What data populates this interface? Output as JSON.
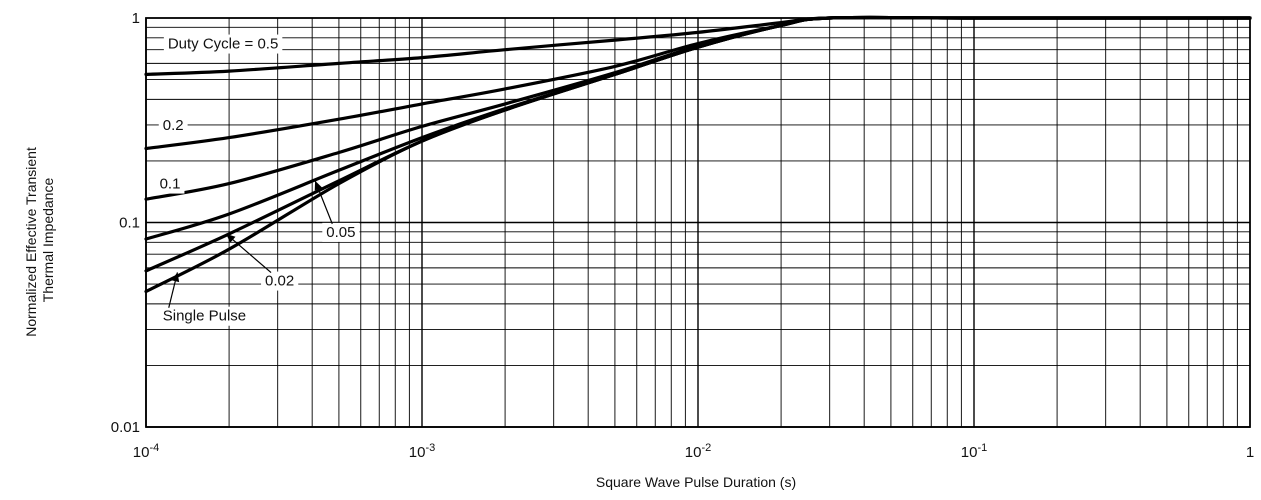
{
  "chart_data": {
    "type": "line",
    "title": "",
    "xlabel": "Square Wave Pulse Duration (s)",
    "ylabel_lines": [
      "Normalized Effective Transient",
      "Thermal Impedance"
    ],
    "x_scale": "log",
    "y_scale": "log",
    "xlim": [
      0.0001,
      1
    ],
    "ylim": [
      0.01,
      1
    ],
    "grid": true,
    "x_ticks": [
      {
        "value": 0.0001,
        "base": "10",
        "exp": "-4"
      },
      {
        "value": 0.001,
        "base": "10",
        "exp": "-3"
      },
      {
        "value": 0.01,
        "base": "10",
        "exp": "-2"
      },
      {
        "value": 0.1,
        "base": "10",
        "exp": "-1"
      },
      {
        "value": 1,
        "base": "1",
        "exp": ""
      }
    ],
    "y_ticks": [
      {
        "value": 0.01,
        "label": "0.01"
      },
      {
        "value": 0.1,
        "label": "0.1"
      },
      {
        "value": 1,
        "label": "1"
      }
    ],
    "series": [
      {
        "name": "Duty Cycle = 0.5",
        "x": [
          0.0001,
          0.0002,
          0.0005,
          0.001,
          0.002,
          0.005,
          0.01,
          0.02,
          0.03,
          0.1,
          1
        ],
        "y": [
          0.53,
          0.55,
          0.6,
          0.64,
          0.7,
          0.78,
          0.85,
          0.95,
          1.0,
          1.0,
          1.0
        ]
      },
      {
        "name": "0.2",
        "x": [
          0.0001,
          0.0002,
          0.0005,
          0.001,
          0.002,
          0.005,
          0.01,
          0.02,
          0.03,
          0.1,
          1
        ],
        "y": [
          0.23,
          0.26,
          0.32,
          0.38,
          0.45,
          0.58,
          0.75,
          0.92,
          1.0,
          1.0,
          1.0
        ]
      },
      {
        "name": "0.1",
        "x": [
          0.0001,
          0.0002,
          0.0005,
          0.001,
          0.002,
          0.005,
          0.01,
          0.02,
          0.03,
          0.1,
          1
        ],
        "y": [
          0.13,
          0.155,
          0.22,
          0.295,
          0.38,
          0.54,
          0.73,
          0.92,
          1.0,
          1.0,
          1.0
        ]
      },
      {
        "name": "0.05",
        "x": [
          0.0001,
          0.0002,
          0.0005,
          0.001,
          0.002,
          0.005,
          0.01,
          0.02,
          0.03,
          0.1,
          1
        ],
        "y": [
          0.083,
          0.11,
          0.18,
          0.26,
          0.36,
          0.53,
          0.72,
          0.92,
          1.0,
          1.0,
          1.0
        ]
      },
      {
        "name": "0.02",
        "x": [
          0.0001,
          0.0002,
          0.0005,
          0.001,
          0.002,
          0.005,
          0.01,
          0.02,
          0.03,
          0.1,
          1
        ],
        "y": [
          0.058,
          0.088,
          0.16,
          0.25,
          0.355,
          0.53,
          0.72,
          0.92,
          1.0,
          1.0,
          1.0
        ]
      },
      {
        "name": "Single Pulse",
        "x": [
          0.0001,
          0.0002,
          0.0005,
          0.001,
          0.002,
          0.005,
          0.01,
          0.02,
          0.03,
          0.1,
          1
        ],
        "y": [
          0.046,
          0.074,
          0.155,
          0.25,
          0.355,
          0.53,
          0.72,
          0.92,
          1.0,
          1.0,
          1.0
        ]
      }
    ],
    "labels": [
      {
        "text": "Duty Cycle = 0.5",
        "at_x": 0.00012,
        "at_y": 0.75,
        "arrow": false
      },
      {
        "text": "0.2",
        "at_x": 0.000115,
        "at_y": 0.3,
        "arrow": false
      },
      {
        "text": "0.1",
        "at_x": 0.000112,
        "at_y": 0.155,
        "arrow": false
      },
      {
        "text": "0.05",
        "at_x": 0.00045,
        "at_y": 0.09,
        "arrow": true,
        "tip_x": 0.00041,
        "tip_y": 0.16
      },
      {
        "text": "0.02",
        "at_x": 0.00027,
        "at_y": 0.052,
        "arrow": true,
        "tip_x": 0.000195,
        "tip_y": 0.088
      },
      {
        "text": "Single Pulse",
        "at_x": 0.000115,
        "at_y": 0.035,
        "arrow": true,
        "tip_x": 0.00013,
        "tip_y": 0.057
      }
    ],
    "colors": {
      "line": "#000000",
      "grid": "#000000",
      "background": "#ffffff"
    }
  }
}
